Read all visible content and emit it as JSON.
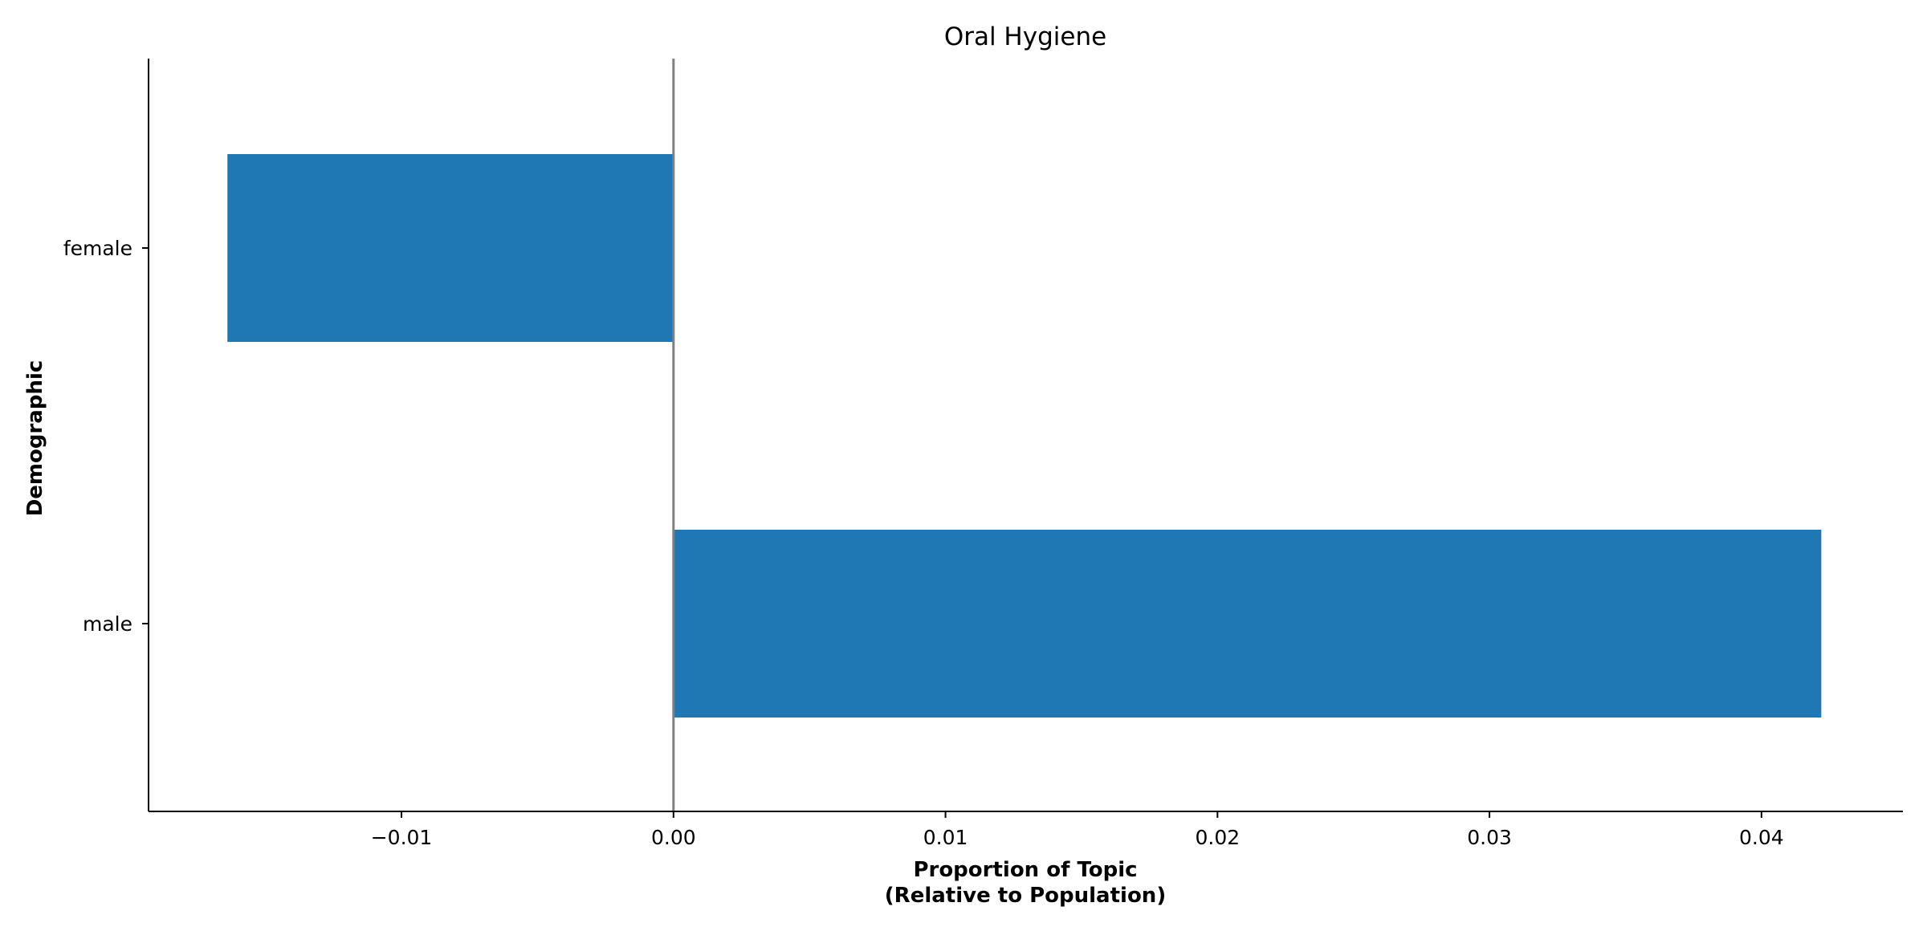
{
  "chart_data": {
    "type": "bar",
    "orientation": "horizontal",
    "title": "Oral Hygiene",
    "xlabel": [
      "Proportion of Topic",
      "(Relative to Population)"
    ],
    "ylabel": "Demographic",
    "categories": [
      "female",
      "male"
    ],
    "values": [
      -0.0164,
      0.0422
    ],
    "xlim": [
      -0.0193,
      0.0452
    ],
    "xticks": [
      -0.01,
      0.0,
      0.01,
      0.02,
      0.03,
      0.04
    ],
    "xtick_labels": [
      "−0.01",
      "0.00",
      "0.01",
      "0.02",
      "0.03",
      "0.04"
    ],
    "zero_line": 0,
    "grid": false,
    "legend": "none",
    "colors": {
      "bar": "#1f77b4",
      "zero_line": "#808080",
      "axis": "#000000"
    }
  }
}
